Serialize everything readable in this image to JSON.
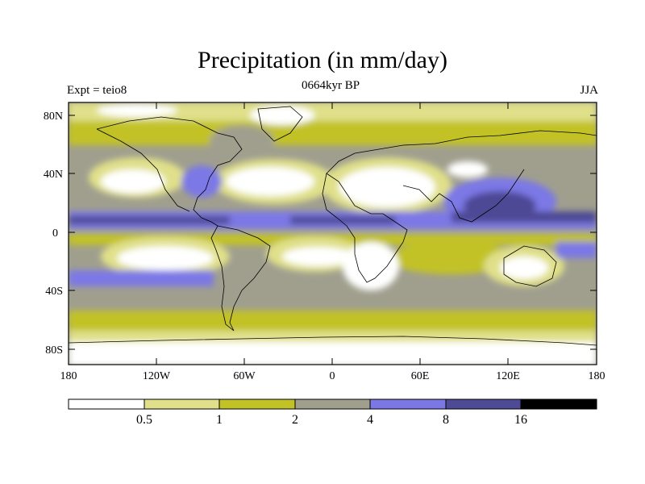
{
  "header": {
    "title": "Precipitation (in mm/day)",
    "left_label": "Expt = teio8",
    "center_label": "0664kyr BP",
    "right_label": "JJA"
  },
  "axes": {
    "lat_ticks": [
      {
        "value": 80,
        "label": "80N"
      },
      {
        "value": 40,
        "label": "40N"
      },
      {
        "value": 0,
        "label": "0"
      },
      {
        "value": -40,
        "label": "40S"
      },
      {
        "value": -80,
        "label": "80S"
      }
    ],
    "lon_ticks": [
      {
        "value": -180,
        "label": "180"
      },
      {
        "value": -120,
        "label": "120W"
      },
      {
        "value": -60,
        "label": "60W"
      },
      {
        "value": 0,
        "label": "0"
      },
      {
        "value": 60,
        "label": "60E"
      },
      {
        "value": 120,
        "label": "120E"
      },
      {
        "value": 180,
        "label": "180"
      }
    ],
    "lon_range": [
      -180,
      180
    ],
    "lat_range": [
      -90,
      90
    ]
  },
  "colorbar": {
    "levels": [
      "0.5",
      "1",
      "2",
      "4",
      "8",
      "16"
    ],
    "colors": [
      "#ffffff",
      "#e0e08a",
      "#c2c226",
      "#a09f8e",
      "#7b78e6",
      "#4e4a95",
      "#000000"
    ]
  }
}
